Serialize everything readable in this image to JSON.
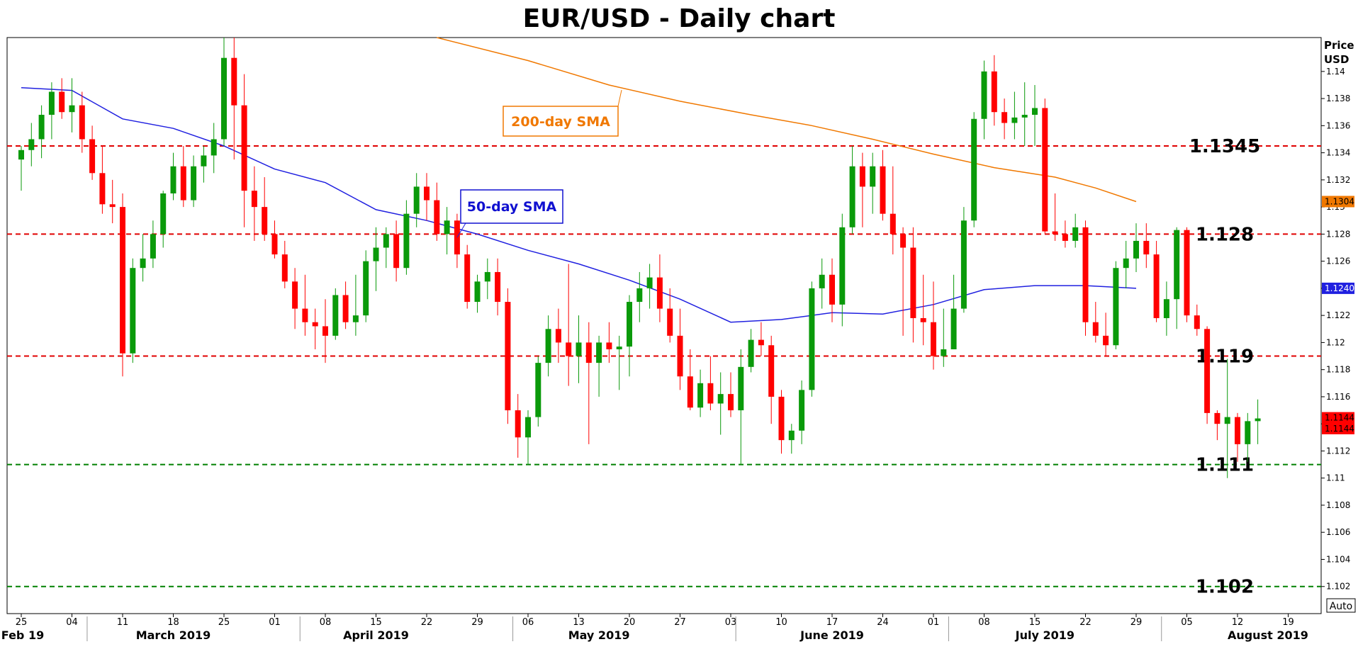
{
  "chart_data": {
    "type": "candlestick",
    "title": "EUR/USD - Daily chart",
    "ylabel": "Price USD",
    "ylim": [
      1.1,
      1.1425
    ],
    "y_ticks": [
      "1.102",
      "1.104",
      "1.106",
      "1.108",
      "1.11",
      "1.112",
      "1.114",
      "1.116",
      "1.118",
      "1.12",
      "1.122",
      "1.124",
      "1.126",
      "1.128",
      "1.13",
      "1.132",
      "1.134",
      "1.136",
      "1.138",
      "1.14"
    ],
    "x_ticks": [
      {
        "label": "25",
        "i": 0
      },
      {
        "label": "04",
        "i": 5
      },
      {
        "label": "11",
        "i": 10
      },
      {
        "label": "18",
        "i": 15
      },
      {
        "label": "25",
        "i": 20
      },
      {
        "label": "01",
        "i": 25
      },
      {
        "label": "08",
        "i": 30
      },
      {
        "label": "15",
        "i": 35
      },
      {
        "label": "22",
        "i": 40
      },
      {
        "label": "29",
        "i": 45
      },
      {
        "label": "06",
        "i": 50
      },
      {
        "label": "13",
        "i": 55
      },
      {
        "label": "20",
        "i": 60
      },
      {
        "label": "27",
        "i": 65
      },
      {
        "label": "03",
        "i": 70
      },
      {
        "label": "10",
        "i": 75
      },
      {
        "label": "17",
        "i": 80
      },
      {
        "label": "24",
        "i": 85
      },
      {
        "label": "01",
        "i": 90
      },
      {
        "label": "08",
        "i": 95
      },
      {
        "label": "15",
        "i": 100
      },
      {
        "label": "22",
        "i": 105
      },
      {
        "label": "29",
        "i": 110
      },
      {
        "label": "05",
        "i": 115
      },
      {
        "label": "12",
        "i": 120
      },
      {
        "label": "19",
        "i": 125
      }
    ],
    "months": [
      {
        "label": "Feb 19",
        "i": 0
      },
      {
        "label": "March 2019",
        "i": 15
      },
      {
        "label": "April 2019",
        "i": 35
      },
      {
        "label": "May 2019",
        "i": 57
      },
      {
        "label": "June 2019",
        "i": 80
      },
      {
        "label": "July 2019",
        "i": 101
      },
      {
        "label": "August 2019",
        "i": 123
      }
    ],
    "horizontal_levels": [
      {
        "label": "1.1345",
        "value": 1.1345,
        "color": "#e00000"
      },
      {
        "label": "1.128",
        "value": 1.128,
        "color": "#e00000"
      },
      {
        "label": "1.119",
        "value": 1.119,
        "color": "#e00000"
      },
      {
        "label": "1.111",
        "value": 1.111,
        "color": "#008000"
      },
      {
        "label": "1.102",
        "value": 1.102,
        "color": "#008000"
      }
    ],
    "sma": [
      {
        "name": "50-day SMA",
        "color": "#2020e0",
        "end_value": 1.124,
        "end_tag": "1.1240",
        "points": [
          [
            0,
            1.1388
          ],
          [
            5,
            1.1386
          ],
          [
            10,
            1.1365
          ],
          [
            15,
            1.1358
          ],
          [
            20,
            1.1345
          ],
          [
            25,
            1.1328
          ],
          [
            30,
            1.1318
          ],
          [
            35,
            1.1298
          ],
          [
            40,
            1.129
          ],
          [
            45,
            1.128
          ],
          [
            50,
            1.1268
          ],
          [
            55,
            1.1258
          ],
          [
            60,
            1.1246
          ],
          [
            65,
            1.1232
          ],
          [
            70,
            1.1215
          ],
          [
            75,
            1.1217
          ],
          [
            80,
            1.1222
          ],
          [
            85,
            1.1221
          ],
          [
            90,
            1.1228
          ],
          [
            95,
            1.1239
          ],
          [
            100,
            1.1242
          ],
          [
            105,
            1.1242
          ],
          [
            110,
            1.124
          ]
        ]
      },
      {
        "name": "200-day SMA",
        "color": "#f07800",
        "end_value": 1.1304,
        "end_tag": "1.1304",
        "points": [
          [
            41,
            1.1425
          ],
          [
            50,
            1.1408
          ],
          [
            58,
            1.139
          ],
          [
            65,
            1.1378
          ],
          [
            72,
            1.1368
          ],
          [
            78,
            1.136
          ],
          [
            84,
            1.135
          ],
          [
            90,
            1.1339
          ],
          [
            96,
            1.1329
          ],
          [
            102,
            1.1322
          ],
          [
            106,
            1.1314
          ],
          [
            110,
            1.1304
          ]
        ]
      }
    ],
    "last_price_tags": [
      "1.1144",
      "1.1144"
    ],
    "candles": [
      [
        1.1335,
        1.1345,
        1.1312,
        1.1342
      ],
      [
        1.1342,
        1.1362,
        1.133,
        1.135
      ],
      [
        1.135,
        1.1375,
        1.1336,
        1.1368
      ],
      [
        1.1368,
        1.1392,
        1.135,
        1.1385
      ],
      [
        1.1385,
        1.1395,
        1.1365,
        1.137
      ],
      [
        1.137,
        1.1395,
        1.1355,
        1.1375
      ],
      [
        1.1375,
        1.1385,
        1.134,
        1.135
      ],
      [
        1.135,
        1.136,
        1.132,
        1.1325
      ],
      [
        1.1325,
        1.1345,
        1.1295,
        1.1302
      ],
      [
        1.1302,
        1.132,
        1.1288,
        1.13
      ],
      [
        1.13,
        1.131,
        1.1175,
        1.1192
      ],
      [
        1.1192,
        1.1262,
        1.1185,
        1.1255
      ],
      [
        1.1255,
        1.128,
        1.1245,
        1.1262
      ],
      [
        1.1262,
        1.129,
        1.1255,
        1.128
      ],
      [
        1.128,
        1.1312,
        1.127,
        1.131
      ],
      [
        1.131,
        1.134,
        1.1305,
        1.133
      ],
      [
        1.133,
        1.1345,
        1.13,
        1.1305
      ],
      [
        1.1305,
        1.1338,
        1.13,
        1.133
      ],
      [
        1.133,
        1.1345,
        1.1318,
        1.1338
      ],
      [
        1.1338,
        1.1362,
        1.1325,
        1.135
      ],
      [
        1.135,
        1.1425,
        1.1345,
        1.141
      ],
      [
        1.141,
        1.1425,
        1.1335,
        1.1375
      ],
      [
        1.1375,
        1.1398,
        1.1285,
        1.1312
      ],
      [
        1.1312,
        1.133,
        1.1275,
        1.13
      ],
      [
        1.13,
        1.1322,
        1.1275,
        1.128
      ],
      [
        1.128,
        1.129,
        1.1262,
        1.1265
      ],
      [
        1.1265,
        1.1275,
        1.124,
        1.1245
      ],
      [
        1.1245,
        1.1255,
        1.121,
        1.1225
      ],
      [
        1.1225,
        1.125,
        1.1205,
        1.1215
      ],
      [
        1.1215,
        1.1225,
        1.1195,
        1.1212
      ],
      [
        1.1212,
        1.1232,
        1.1185,
        1.1205
      ],
      [
        1.1205,
        1.124,
        1.1202,
        1.1235
      ],
      [
        1.1235,
        1.1245,
        1.121,
        1.1215
      ],
      [
        1.1215,
        1.125,
        1.1205,
        1.122
      ],
      [
        1.122,
        1.1268,
        1.1215,
        1.126
      ],
      [
        1.126,
        1.1285,
        1.1238,
        1.127
      ],
      [
        1.127,
        1.1285,
        1.1255,
        1.128
      ],
      [
        1.128,
        1.129,
        1.1245,
        1.1255
      ],
      [
        1.1255,
        1.1305,
        1.125,
        1.1295
      ],
      [
        1.1295,
        1.1325,
        1.1285,
        1.1315
      ],
      [
        1.1315,
        1.1325,
        1.129,
        1.1305
      ],
      [
        1.1305,
        1.1318,
        1.1275,
        1.128
      ],
      [
        1.128,
        1.13,
        1.1265,
        1.129
      ],
      [
        1.129,
        1.1295,
        1.1255,
        1.1265
      ],
      [
        1.1265,
        1.1272,
        1.1225,
        1.123
      ],
      [
        1.123,
        1.125,
        1.1222,
        1.1245
      ],
      [
        1.1245,
        1.1262,
        1.1232,
        1.1252
      ],
      [
        1.1252,
        1.1262,
        1.122,
        1.123
      ],
      [
        1.123,
        1.124,
        1.114,
        1.115
      ],
      [
        1.115,
        1.1162,
        1.1115,
        1.113
      ],
      [
        1.113,
        1.115,
        1.111,
        1.1145
      ],
      [
        1.1145,
        1.119,
        1.1138,
        1.1185
      ],
      [
        1.1185,
        1.122,
        1.1175,
        1.121
      ],
      [
        1.121,
        1.1225,
        1.1185,
        1.12
      ],
      [
        1.12,
        1.1258,
        1.1168,
        1.119
      ],
      [
        1.119,
        1.122,
        1.117,
        1.12
      ],
      [
        1.12,
        1.1215,
        1.1125,
        1.1185
      ],
      [
        1.1185,
        1.1205,
        1.116,
        1.12
      ],
      [
        1.12,
        1.1215,
        1.1185,
        1.1195
      ],
      [
        1.1195,
        1.1205,
        1.1165,
        1.1197
      ],
      [
        1.1197,
        1.1235,
        1.1175,
        1.123
      ],
      [
        1.123,
        1.1252,
        1.1215,
        1.124
      ],
      [
        1.124,
        1.1258,
        1.1225,
        1.1248
      ],
      [
        1.1248,
        1.1265,
        1.1215,
        1.1225
      ],
      [
        1.1225,
        1.124,
        1.12,
        1.1205
      ],
      [
        1.1205,
        1.1225,
        1.1165,
        1.1175
      ],
      [
        1.1175,
        1.1195,
        1.115,
        1.1152
      ],
      [
        1.1152,
        1.118,
        1.1145,
        1.117
      ],
      [
        1.117,
        1.119,
        1.115,
        1.1155
      ],
      [
        1.1155,
        1.1178,
        1.1132,
        1.1162
      ],
      [
        1.1162,
        1.1178,
        1.1145,
        1.115
      ],
      [
        1.115,
        1.1195,
        1.111,
        1.1182
      ],
      [
        1.1182,
        1.121,
        1.1178,
        1.1202
      ],
      [
        1.1202,
        1.1215,
        1.119,
        1.1198
      ],
      [
        1.1198,
        1.1205,
        1.114,
        1.116
      ],
      [
        1.116,
        1.1165,
        1.1118,
        1.1128
      ],
      [
        1.1128,
        1.114,
        1.1118,
        1.1135
      ],
      [
        1.1135,
        1.1172,
        1.1125,
        1.1165
      ],
      [
        1.1165,
        1.1245,
        1.116,
        1.124
      ],
      [
        1.124,
        1.1262,
        1.1225,
        1.125
      ],
      [
        1.125,
        1.1262,
        1.1215,
        1.1228
      ],
      [
        1.1228,
        1.1295,
        1.1212,
        1.1285
      ],
      [
        1.1285,
        1.1345,
        1.128,
        1.133
      ],
      [
        1.133,
        1.134,
        1.1285,
        1.1315
      ],
      [
        1.1315,
        1.134,
        1.1295,
        1.133
      ],
      [
        1.133,
        1.1342,
        1.129,
        1.1295
      ],
      [
        1.1295,
        1.133,
        1.1265,
        1.128
      ],
      [
        1.128,
        1.1285,
        1.1205,
        1.127
      ],
      [
        1.127,
        1.1285,
        1.12,
        1.1218
      ],
      [
        1.1218,
        1.125,
        1.1198,
        1.1215
      ],
      [
        1.1215,
        1.1245,
        1.118,
        1.119
      ],
      [
        1.119,
        1.1225,
        1.1182,
        1.1195
      ],
      [
        1.1195,
        1.125,
        1.1195,
        1.1225
      ],
      [
        1.1225,
        1.13,
        1.1222,
        1.129
      ],
      [
        1.129,
        1.137,
        1.1285,
        1.1365
      ],
      [
        1.1365,
        1.1408,
        1.135,
        1.14
      ],
      [
        1.14,
        1.1412,
        1.136,
        1.137
      ],
      [
        1.137,
        1.138,
        1.135,
        1.1362
      ],
      [
        1.1362,
        1.1385,
        1.135,
        1.1366
      ],
      [
        1.1366,
        1.1392,
        1.1345,
        1.1368
      ],
      [
        1.1368,
        1.139,
        1.1345,
        1.1373
      ],
      [
        1.1373,
        1.138,
        1.128,
        1.1282
      ],
      [
        1.1282,
        1.131,
        1.1275,
        1.128
      ],
      [
        1.128,
        1.129,
        1.127,
        1.1275
      ],
      [
        1.1275,
        1.1295,
        1.127,
        1.1285
      ],
      [
        1.1285,
        1.129,
        1.1205,
        1.1215
      ],
      [
        1.1215,
        1.123,
        1.12,
        1.1205
      ],
      [
        1.1205,
        1.1222,
        1.119,
        1.1198
      ],
      [
        1.1198,
        1.126,
        1.1195,
        1.1255
      ],
      [
        1.1255,
        1.1275,
        1.124,
        1.1262
      ],
      [
        1.1262,
        1.1288,
        1.1252,
        1.1275
      ],
      [
        1.1275,
        1.1288,
        1.1255,
        1.1265
      ],
      [
        1.1265,
        1.1275,
        1.1215,
        1.1218
      ],
      [
        1.1218,
        1.1245,
        1.1205,
        1.1232
      ],
      [
        1.1232,
        1.1285,
        1.121,
        1.1283
      ],
      [
        1.1283,
        1.1285,
        1.1215,
        1.122
      ],
      [
        1.122,
        1.1228,
        1.1205,
        1.121
      ],
      [
        1.121,
        1.1212,
        1.114,
        1.1148
      ],
      [
        1.1148,
        1.115,
        1.1128,
        1.114
      ],
      [
        1.114,
        1.1188,
        1.11,
        1.1145
      ],
      [
        1.1145,
        1.1148,
        1.1112,
        1.1125
      ],
      [
        1.1125,
        1.1148,
        1.1112,
        1.1142
      ],
      [
        1.1142,
        1.1158,
        1.1125,
        1.1144
      ]
    ]
  },
  "legend": {
    "sma50_label": "50-day SMA",
    "sma200_label": "200-day SMA"
  },
  "axis": {
    "price_header_line1": "Price",
    "price_header_line2": "USD",
    "auto_button": "Auto"
  },
  "colors": {
    "bull": "#0a9a0a",
    "bear": "#ff0000",
    "level_red": "#e00000",
    "level_green": "#008000",
    "sma50": "#2020e0",
    "sma200": "#f07800"
  }
}
